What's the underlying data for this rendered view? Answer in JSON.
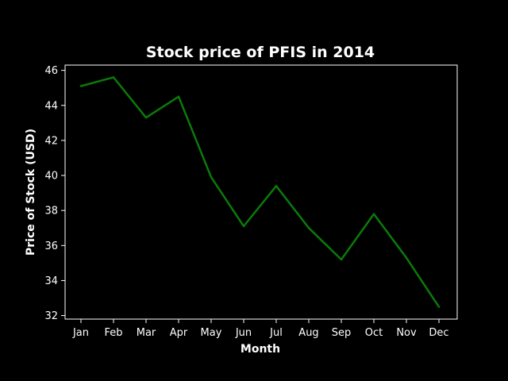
{
  "chart_data": {
    "type": "line",
    "title": "Stock price of PFIS in 2014",
    "xlabel": "Month",
    "ylabel": "Price of Stock (USD)",
    "categories": [
      "Jan",
      "Feb",
      "Mar",
      "Apr",
      "May",
      "Jun",
      "Jul",
      "Aug",
      "Sep",
      "Oct",
      "Nov",
      "Dec"
    ],
    "series": [
      {
        "values": [
          45.1,
          45.6,
          43.3,
          44.5,
          39.9,
          37.1,
          39.4,
          37.0,
          35.2,
          37.8,
          35.3,
          32.5
        ]
      }
    ],
    "ylim": [
      31.8,
      46.3
    ],
    "yticks": [
      32,
      34,
      36,
      38,
      40,
      42,
      44,
      46
    ],
    "grid": false,
    "colors": {
      "background": "#000000",
      "line": "#0a7a0a",
      "axes": "#ffffff"
    }
  }
}
